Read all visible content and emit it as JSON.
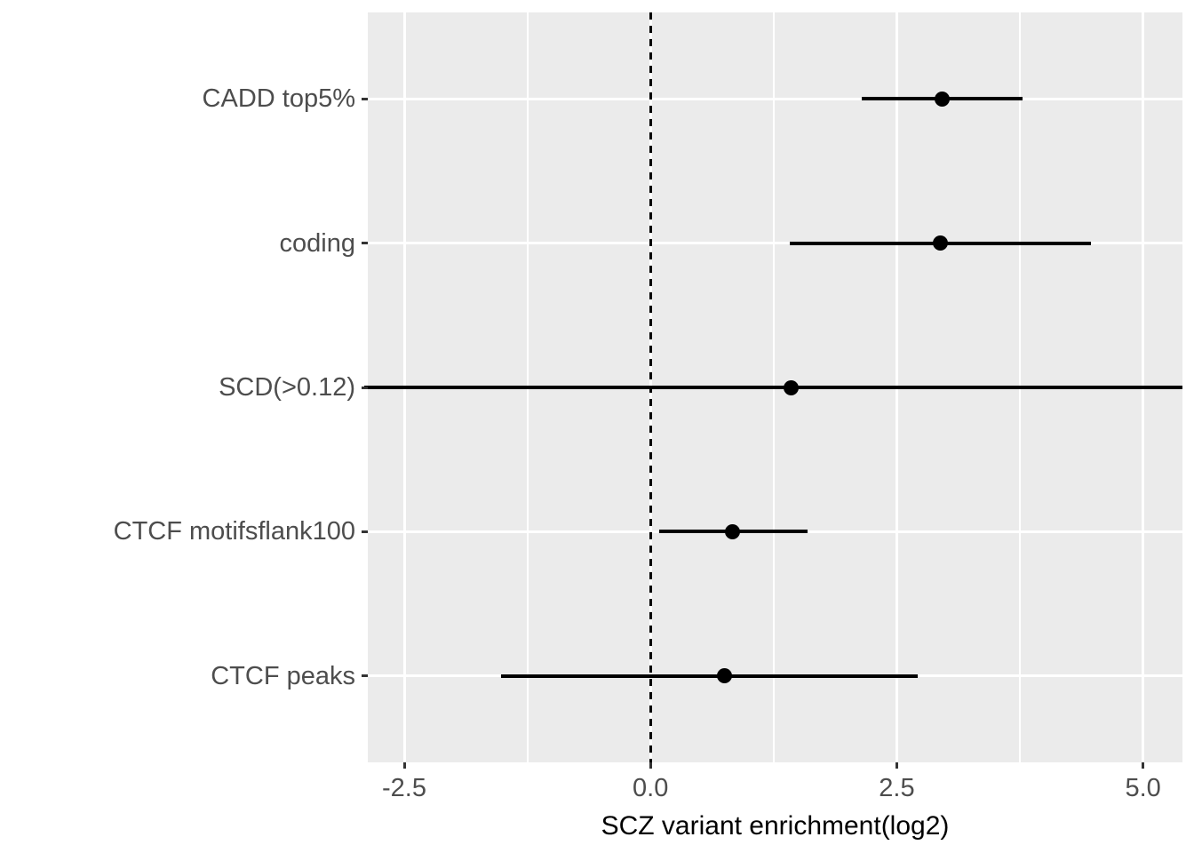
{
  "chart_data": {
    "type": "scatter",
    "subtype": "forest-plot-with-error-bars",
    "title": "",
    "xlabel": "SCZ variant enrichment(log2)",
    "ylabel": "",
    "categories": [
      "CADD top5%",
      "coding",
      "SCD(>0.12)",
      "CTCF motifsflank100",
      "CTCF peaks"
    ],
    "points": [
      {
        "label": "CADD top5%",
        "estimate": 2.96,
        "ci_low": 2.14,
        "ci_high": 3.78,
        "ci_clipped": false
      },
      {
        "label": "coding",
        "estimate": 2.94,
        "ci_low": 1.41,
        "ci_high": 4.47,
        "ci_clipped": false
      },
      {
        "label": "SCD(>0.12)",
        "estimate": 1.43,
        "ci_low": -2.91,
        "ci_high": 5.4,
        "ci_clipped": true
      },
      {
        "label": "CTCF motifsflank100",
        "estimate": 0.83,
        "ci_low": 0.09,
        "ci_high": 1.59,
        "ci_clipped": false
      },
      {
        "label": "CTCF peaks",
        "estimate": 0.75,
        "ci_low": -1.52,
        "ci_high": 2.71,
        "ci_clipped": false
      }
    ],
    "x_ticks": [
      -2.5,
      0.0,
      2.5,
      5.0
    ],
    "x_tick_labels": [
      "-2.5",
      "0.0",
      "2.5",
      "5.0"
    ],
    "x_minor_ticks": [
      -1.25,
      1.25,
      3.75
    ],
    "xlim": [
      -2.87,
      5.4
    ],
    "reference_line": {
      "x": 0.0,
      "style": "dashed",
      "color": "#000000"
    },
    "grid": "major-and-minor-vertical, major-horizontal",
    "legend": "none",
    "colors": {
      "panel_background": "#EBEBEB",
      "gridline": "#FFFFFF",
      "point_and_ci": "#000000",
      "axis_text": "#4D4D4D",
      "axis_ticks": "#333333",
      "axis_title": "#000000"
    }
  }
}
